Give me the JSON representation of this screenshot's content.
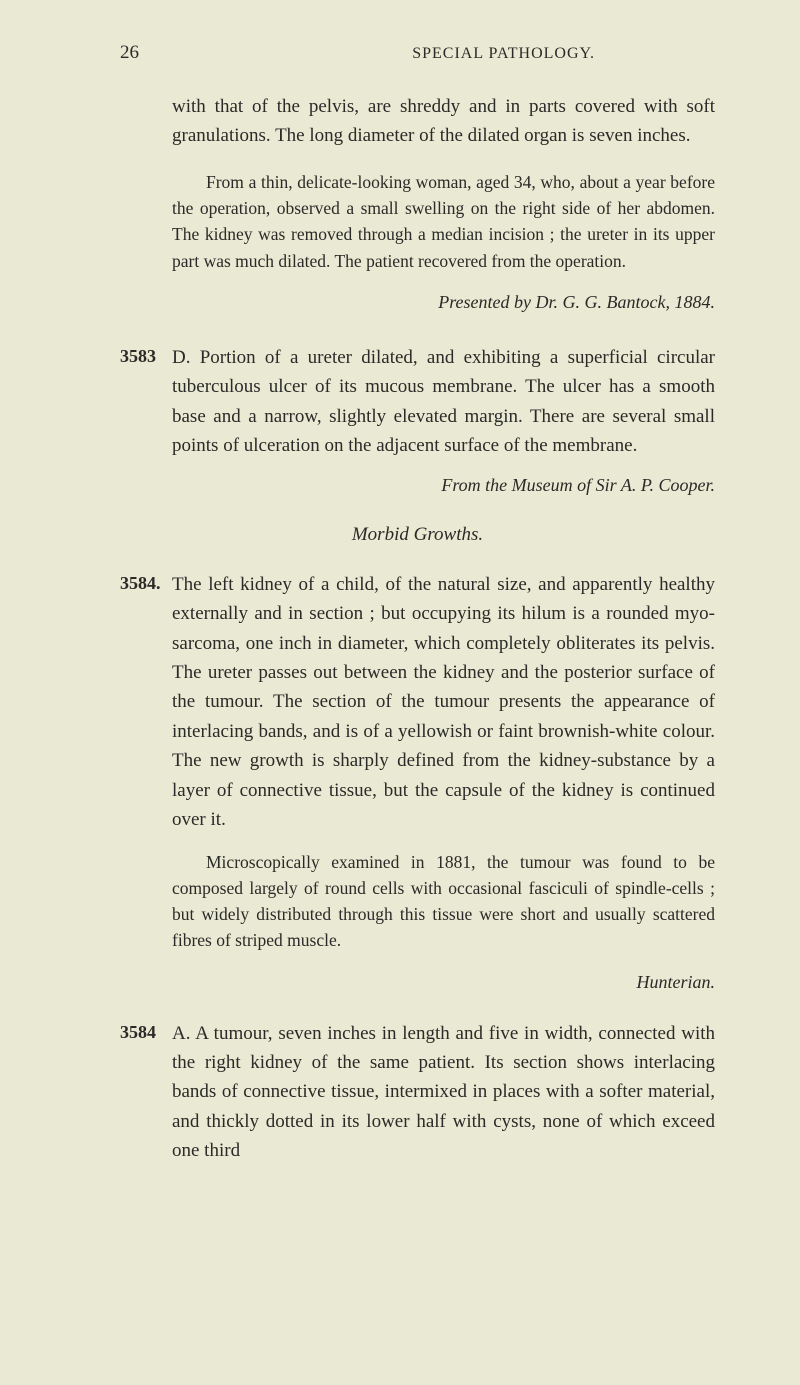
{
  "header": {
    "page_number": "26",
    "title": "SPECIAL PATHOLOGY."
  },
  "intro_para1": "with that of the pelvis, are shreddy and in parts covered with soft granulations. The long diameter of the dilated organ is seven inches.",
  "intro_para2": "From a thin, delicate-looking woman, aged 34, who, about a year before the operation, observed a small swelling on the right side of her abdomen. The kidney was removed through a median incision ; the ureter in its upper part was much dilated. The patient recovered from the operation.",
  "presented_by": "Presented by Dr. G. G. Bantock, 1884.",
  "entry_3583": {
    "num": "3583",
    "letter": "D.",
    "text": "Portion of a ureter dilated, and exhibiting a superficial circular tuberculous ulcer of its mucous membrane. The ulcer has a smooth base and a narrow, slightly elevated margin. There are several small points of ulceration on the adjacent surface of the membrane.",
    "from": "From the Museum of Sir A. P. Cooper."
  },
  "section_heading": "Morbid Growths.",
  "entry_3584": {
    "num": "3584.",
    "text": "The left kidney of a child, of the natural size, and apparently healthy externally and in section ; but occupying its hilum is a rounded myo-sarcoma, one inch in diameter, which completely obliterates its pelvis. The ureter passes out between the kidney and the posterior surface of the tumour. The section of the tumour presents the appearance of interlacing bands, and is of a yellowish or faint brownish-white colour. The new growth is sharply defined from the kidney-substance by a layer of connective tissue, but the capsule of the kidney is continued over it.",
    "note": "Microscopically examined in 1881, the tumour was found to be composed largely of round cells with occasional fasciculi of spindle-cells ; but widely distributed through this tissue were short and usually scattered fibres of striped muscle.",
    "attribution": "Hunterian."
  },
  "entry_3584a": {
    "num": "3584",
    "letter": "A.",
    "text": "A tumour, seven inches in length and five in width, connected with the right kidney of the same patient. Its section shows interlacing bands of connective tissue, intermixed in places with a softer material, and thickly dotted in its lower half with cysts, none of which exceed one third"
  }
}
